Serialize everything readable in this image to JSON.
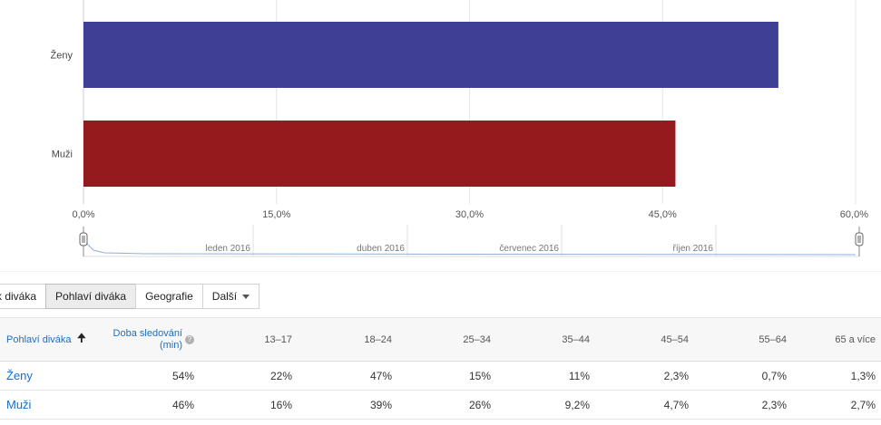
{
  "chart_data": {
    "type": "bar",
    "orientation": "horizontal",
    "categories": [
      "Ženy",
      "Muži"
    ],
    "values": [
      54,
      46
    ],
    "colors": [
      "#3f3f96",
      "#951a1d"
    ],
    "xlim": [
      0,
      60
    ],
    "tick_labels": [
      "0,0%",
      "15,0%",
      "30,0%",
      "45,0%",
      "60,0%"
    ],
    "tick_values": [
      0,
      15,
      30,
      45,
      60
    ],
    "grid": true
  },
  "timeline": {
    "labels": [
      "leden 2016",
      "duben 2016",
      "červenec 2016",
      "říjen 2016"
    ]
  },
  "tabs": [
    {
      "label": "k diváka",
      "active": false
    },
    {
      "label": "Pohlaví diváka",
      "active": true
    },
    {
      "label": "Geografie",
      "active": false
    },
    {
      "label": "Další",
      "active": false
    }
  ],
  "table": {
    "header": {
      "gender": "Pohlaví diváka",
      "watch_time_line1": "Doba sledování",
      "watch_time_line2": "(min)",
      "ages": [
        "13–17",
        "18–24",
        "25–34",
        "35–44",
        "45–54",
        "55–64",
        "65 a více"
      ]
    },
    "rows": [
      {
        "label": "Ženy",
        "values": [
          "54%",
          "22%",
          "47%",
          "15%",
          "11%",
          "2,3%",
          "0,7%",
          "1,3%"
        ]
      },
      {
        "label": "Muži",
        "values": [
          "46%",
          "16%",
          "39%",
          "26%",
          "9,2%",
          "4,7%",
          "2,3%",
          "2,7%"
        ]
      }
    ]
  },
  "colors": {
    "link": "#1a6fbf"
  }
}
